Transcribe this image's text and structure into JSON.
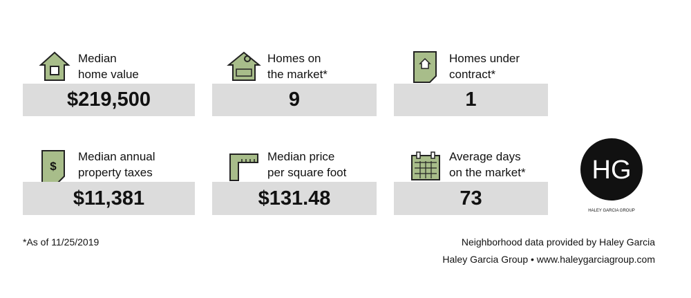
{
  "stats": [
    {
      "label": [
        "Median",
        "home value"
      ],
      "value": "$219,500"
    },
    {
      "label": [
        "Homes on",
        "the market*"
      ],
      "value": "9"
    },
    {
      "label": [
        "Homes under",
        "contract*"
      ],
      "value": "1"
    },
    {
      "label": [
        "Median annual",
        "property taxes"
      ],
      "value": "$11,381"
    },
    {
      "label": [
        "Median price",
        "per square foot"
      ],
      "value": "$131.48"
    },
    {
      "label": [
        "Average days",
        "on the market*"
      ],
      "value": "73"
    }
  ],
  "logo": {
    "initials": "HG",
    "name": "HALEY GARCIA GROUP"
  },
  "footnote": "*As of 11/25/2019",
  "credits": [
    "Neighborhood data provided by Haley Garcia",
    "Haley Garcia Group • www.haleygarciagroup.com"
  ]
}
